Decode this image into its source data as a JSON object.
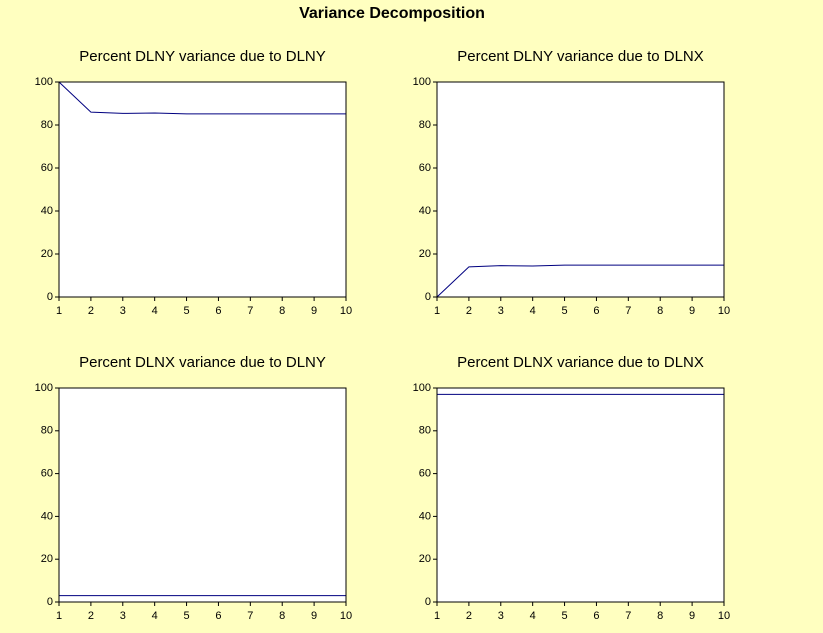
{
  "title": "Variance Decomposition",
  "chart_data": [
    {
      "type": "line",
      "title": "Percent DLNY variance due to DLNY",
      "x": [
        1,
        2,
        3,
        4,
        5,
        6,
        7,
        8,
        9,
        10
      ],
      "series": [
        {
          "color": "#000080",
          "values": [
            100,
            86,
            85.4,
            85.6,
            85.2,
            85.2,
            85.2,
            85.2,
            85.2,
            85.2
          ]
        }
      ],
      "xlim": [
        1,
        10
      ],
      "xticks": [
        1,
        2,
        3,
        4,
        5,
        6,
        7,
        8,
        9,
        10
      ],
      "ylim": [
        0,
        100
      ],
      "yticks": [
        0,
        20,
        40,
        60,
        80,
        100
      ]
    },
    {
      "type": "line",
      "title": "Percent DLNY variance due to DLNX",
      "x": [
        1,
        2,
        3,
        4,
        5,
        6,
        7,
        8,
        9,
        10
      ],
      "series": [
        {
          "color": "#000080",
          "values": [
            0,
            14,
            14.6,
            14.4,
            14.8,
            14.8,
            14.8,
            14.8,
            14.8,
            14.8
          ]
        }
      ],
      "xlim": [
        1,
        10
      ],
      "xticks": [
        1,
        2,
        3,
        4,
        5,
        6,
        7,
        8,
        9,
        10
      ],
      "ylim": [
        0,
        100
      ],
      "yticks": [
        0,
        20,
        40,
        60,
        80,
        100
      ]
    },
    {
      "type": "line",
      "title": "Percent DLNX variance due to DLNY",
      "x": [
        1,
        2,
        3,
        4,
        5,
        6,
        7,
        8,
        9,
        10
      ],
      "series": [
        {
          "color": "#000080",
          "values": [
            3,
            3,
            3,
            3,
            3,
            3,
            3,
            3,
            3,
            3
          ]
        }
      ],
      "xlim": [
        1,
        10
      ],
      "xticks": [
        1,
        2,
        3,
        4,
        5,
        6,
        7,
        8,
        9,
        10
      ],
      "ylim": [
        0,
        100
      ],
      "yticks": [
        0,
        20,
        40,
        60,
        80,
        100
      ]
    },
    {
      "type": "line",
      "title": "Percent DLNX variance due to DLNX",
      "x": [
        1,
        2,
        3,
        4,
        5,
        6,
        7,
        8,
        9,
        10
      ],
      "series": [
        {
          "color": "#000080",
          "values": [
            97,
            97,
            97,
            97,
            97,
            97,
            97,
            97,
            97,
            97
          ]
        }
      ],
      "xlim": [
        1,
        10
      ],
      "xticks": [
        1,
        2,
        3,
        4,
        5,
        6,
        7,
        8,
        9,
        10
      ],
      "ylim": [
        0,
        100
      ],
      "yticks": [
        0,
        20,
        40,
        60,
        80,
        100
      ]
    }
  ]
}
